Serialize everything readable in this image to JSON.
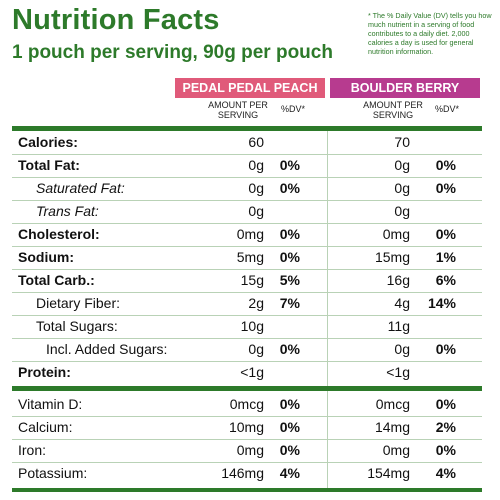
{
  "title": "Nutrition Facts",
  "subtitle": "1 pouch per serving, 90g per pouch",
  "footnote": "* The % Daily Value (DV) tells you how much nutrient in a serving of food contributes to a daily diet. 2,000 calories a day is used for general nutrition information.",
  "products": [
    {
      "name": "PEDAL PEDAL PEACH",
      "color": "#e05a7a"
    },
    {
      "name": "BOULDER BERRY",
      "color": "#b73b8f"
    }
  ],
  "col_headers": {
    "amount": "AMOUNT PER SERVING",
    "dv": "%DV*"
  },
  "rows": [
    {
      "label": "Calories:",
      "p1_amt": "60",
      "p1_dv": "",
      "p2_amt": "70",
      "p2_dv": ""
    },
    {
      "label": "Total Fat:",
      "p1_amt": "0g",
      "p1_dv": "0%",
      "p2_amt": "0g",
      "p2_dv": "0%"
    },
    {
      "label": "Saturated Fat:",
      "p1_amt": "0g",
      "p1_dv": "0%",
      "p2_amt": "0g",
      "p2_dv": "0%"
    },
    {
      "label": "Trans Fat:",
      "p1_amt": "0g",
      "p1_dv": "",
      "p2_amt": "0g",
      "p2_dv": ""
    },
    {
      "label": "Cholesterol:",
      "p1_amt": "0mg",
      "p1_dv": "0%",
      "p2_amt": "0mg",
      "p2_dv": "0%"
    },
    {
      "label": "Sodium:",
      "p1_amt": "5mg",
      "p1_dv": "0%",
      "p2_amt": "15mg",
      "p2_dv": "1%"
    },
    {
      "label": "Total Carb.:",
      "p1_amt": "15g",
      "p1_dv": "5%",
      "p2_amt": "16g",
      "p2_dv": "6%"
    },
    {
      "label": "Dietary Fiber:",
      "p1_amt": "2g",
      "p1_dv": "7%",
      "p2_amt": "4g",
      "p2_dv": "14%"
    },
    {
      "label": "Total Sugars:",
      "p1_amt": "10g",
      "p1_dv": "",
      "p2_amt": "11g",
      "p2_dv": ""
    },
    {
      "label": "Incl. Added Sugars:",
      "p1_amt": "0g",
      "p1_dv": "0%",
      "p2_amt": "0g",
      "p2_dv": "0%"
    },
    {
      "label": "Protein:",
      "p1_amt": "<1g",
      "p1_dv": "",
      "p2_amt": "<1g",
      "p2_dv": ""
    },
    {
      "label": "Vitamin D:",
      "p1_amt": "0mcg",
      "p1_dv": "0%",
      "p2_amt": "0mcg",
      "p2_dv": "0%"
    },
    {
      "label": "Calcium:",
      "p1_amt": "10mg",
      "p1_dv": "0%",
      "p2_amt": "14mg",
      "p2_dv": "2%"
    },
    {
      "label": "Iron:",
      "p1_amt": "0mg",
      "p1_dv": "0%",
      "p2_amt": "0mg",
      "p2_dv": "0%"
    },
    {
      "label": "Potassium:",
      "p1_amt": "146mg",
      "p1_dv": "4%",
      "p2_amt": "154mg",
      "p2_dv": "4%"
    }
  ],
  "colors": {
    "brand_green": "#2d7a2a",
    "peach_header": "#e05a7a",
    "berry_header": "#b73b8f"
  }
}
